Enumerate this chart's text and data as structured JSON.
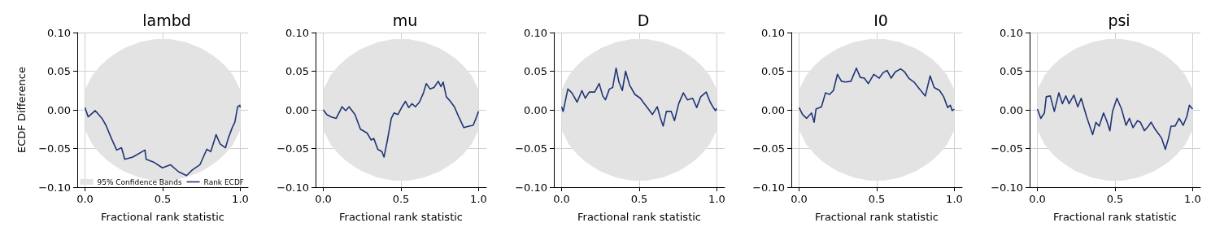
{
  "chart_data": [
    {
      "type": "line",
      "title": "lambd",
      "xlabel": "Fractional rank statistic",
      "ylabel": "ECDF Difference",
      "xlim": [
        -0.05,
        1.05
      ],
      "ylim": [
        -0.1,
        0.1
      ],
      "xticks": [
        {
          "value": 0,
          "label": "0.0"
        },
        {
          "value": 0.5,
          "label": "0.5"
        },
        {
          "value": 1,
          "label": "1.0"
        }
      ],
      "yticks": [
        {
          "value": -0.1,
          "label": "−0.10"
        },
        {
          "value": -0.05,
          "label": "−0.05"
        },
        {
          "value": 0,
          "label": "0.00"
        },
        {
          "value": 0.05,
          "label": "0.05"
        },
        {
          "value": 0.1,
          "label": "0.10"
        }
      ],
      "grid": true,
      "legend": "bottom right",
      "series": [
        {
          "type": "area",
          "name": "95% Confidence Bands",
          "color": "#e3e3e3",
          "x": [
            0,
            0.05,
            0.1,
            0.15,
            0.2,
            0.25,
            0.3,
            0.35,
            0.4,
            0.45,
            0.5,
            0.55,
            0.6,
            0.65,
            0.7,
            0.75,
            0.8,
            0.85,
            0.9,
            0.95,
            1
          ],
          "values": [
            0.025,
            0.045,
            0.057,
            0.066,
            0.073,
            0.079,
            0.083,
            0.087,
            0.089,
            0.091,
            0.091,
            0.091,
            0.089,
            0.087,
            0.083,
            0.079,
            0.073,
            0.066,
            0.057,
            0.045,
            0.025
          ]
        },
        {
          "type": "area",
          "color": "#e3e3e3",
          "x": [
            0,
            0.05,
            0.1,
            0.15,
            0.2,
            0.25,
            0.3,
            0.35,
            0.4,
            0.45,
            0.5,
            0.55,
            0.6,
            0.65,
            0.7,
            0.75,
            0.8,
            0.85,
            0.9,
            0.95,
            1
          ],
          "values": [
            -0.025,
            -0.045,
            -0.057,
            -0.066,
            -0.073,
            -0.079,
            -0.083,
            -0.087,
            -0.089,
            -0.091,
            -0.091,
            -0.091,
            -0.089,
            -0.087,
            -0.083,
            -0.079,
            -0.073,
            -0.066,
            -0.057,
            -0.045,
            -0.025
          ]
        },
        {
          "type": "line",
          "name": "Rank ECDF",
          "color": "#1f3577",
          "x": [
            0,
            0.02,
            0.066,
            0.109,
            0.135,
            0.17,
            0.204,
            0.235,
            0.256,
            0.308,
            0.386,
            0.394,
            0.446,
            0.498,
            0.55,
            0.602,
            0.654,
            0.689,
            0.74,
            0.784,
            0.81,
            0.844,
            0.87,
            0.905,
            0.922,
            0.948,
            0.965,
            0.983,
            0.997,
            1
          ],
          "values": [
            0.003,
            -0.009,
            -0.001,
            -0.011,
            -0.02,
            -0.037,
            -0.052,
            -0.049,
            -0.064,
            -0.061,
            -0.052,
            -0.064,
            -0.068,
            -0.075,
            -0.071,
            -0.08,
            -0.085,
            -0.078,
            -0.071,
            -0.051,
            -0.054,
            -0.032,
            -0.044,
            -0.049,
            -0.037,
            -0.023,
            -0.016,
            0.004,
            0.006,
            0.003
          ]
        }
      ]
    },
    {
      "type": "line",
      "title": "mu",
      "xlabel": "Fractional rank statistic",
      "xlim": [
        -0.05,
        1.05
      ],
      "ylim": [
        -0.1,
        0.1
      ],
      "xticks": [
        {
          "value": 0,
          "label": "0.0"
        },
        {
          "value": 0.5,
          "label": "0.5"
        },
        {
          "value": 1,
          "label": "1.0"
        }
      ],
      "yticks": [
        {
          "value": -0.1,
          "label": "−0.10"
        },
        {
          "value": -0.05,
          "label": "−0.05"
        },
        {
          "value": 0,
          "label": "0.00"
        },
        {
          "value": 0.05,
          "label": "0.05"
        },
        {
          "value": 0.1,
          "label": "0.10"
        }
      ],
      "grid": true,
      "series": [
        {
          "type": "area",
          "color": "#e3e3e3",
          "x": [
            0,
            0.05,
            0.1,
            0.15,
            0.2,
            0.25,
            0.3,
            0.35,
            0.4,
            0.45,
            0.5,
            0.55,
            0.6,
            0.65,
            0.7,
            0.75,
            0.8,
            0.85,
            0.9,
            0.95,
            1
          ],
          "values": [
            0.025,
            0.045,
            0.057,
            0.066,
            0.073,
            0.079,
            0.083,
            0.087,
            0.089,
            0.091,
            0.091,
            0.091,
            0.089,
            0.087,
            0.083,
            0.079,
            0.073,
            0.066,
            0.057,
            0.045,
            0.025
          ]
        },
        {
          "type": "area",
          "color": "#e3e3e3",
          "x": [
            0,
            0.05,
            0.1,
            0.15,
            0.2,
            0.25,
            0.3,
            0.35,
            0.4,
            0.45,
            0.5,
            0.55,
            0.6,
            0.65,
            0.7,
            0.75,
            0.8,
            0.85,
            0.9,
            0.95,
            1
          ],
          "values": [
            -0.025,
            -0.045,
            -0.057,
            -0.066,
            -0.073,
            -0.079,
            -0.083,
            -0.087,
            -0.089,
            -0.091,
            -0.091,
            -0.091,
            -0.089,
            -0.087,
            -0.083,
            -0.079,
            -0.073,
            -0.066,
            -0.057,
            -0.045,
            -0.025
          ]
        },
        {
          "type": "line",
          "color": "#1f3577",
          "x": [
            0,
            0.022,
            0.048,
            0.083,
            0.121,
            0.144,
            0.166,
            0.204,
            0.239,
            0.282,
            0.308,
            0.325,
            0.351,
            0.377,
            0.391,
            0.412,
            0.438,
            0.455,
            0.481,
            0.507,
            0.529,
            0.55,
            0.571,
            0.593,
            0.619,
            0.645,
            0.663,
            0.688,
            0.713,
            0.74,
            0.758,
            0.772,
            0.792,
            0.818,
            0.844,
            0.87,
            0.905,
            0.939,
            0.965,
            0.983,
            1
          ],
          "values": [
            0,
            -0.006,
            -0.009,
            -0.011,
            0.004,
            -0.001,
            0.004,
            -0.006,
            -0.025,
            -0.03,
            -0.039,
            -0.037,
            -0.051,
            -0.054,
            -0.061,
            -0.04,
            -0.011,
            -0.004,
            -0.006,
            0.004,
            0.011,
            0.003,
            0.008,
            0.004,
            0.01,
            0.022,
            0.034,
            0.027,
            0.029,
            0.037,
            0.03,
            0.036,
            0.017,
            0.011,
            0.004,
            -0.008,
            -0.023,
            -0.021,
            -0.02,
            -0.011,
            -0.002
          ]
        }
      ]
    },
    {
      "type": "line",
      "title": "D",
      "xlabel": "Fractional rank statistic",
      "xlim": [
        -0.05,
        1.05
      ],
      "ylim": [
        -0.1,
        0.1
      ],
      "xticks": [
        {
          "value": 0,
          "label": "0.0"
        },
        {
          "value": 0.5,
          "label": "0.5"
        },
        {
          "value": 1,
          "label": "1.0"
        }
      ],
      "yticks": [
        {
          "value": -0.1,
          "label": "−0.10"
        },
        {
          "value": -0.05,
          "label": "−0.05"
        },
        {
          "value": 0,
          "label": "0.00"
        },
        {
          "value": 0.05,
          "label": "0.05"
        },
        {
          "value": 0.1,
          "label": "0.10"
        }
      ],
      "grid": true,
      "series": [
        {
          "type": "area",
          "color": "#e3e3e3",
          "x": [
            0,
            0.05,
            0.1,
            0.15,
            0.2,
            0.25,
            0.3,
            0.35,
            0.4,
            0.45,
            0.5,
            0.55,
            0.6,
            0.65,
            0.7,
            0.75,
            0.8,
            0.85,
            0.9,
            0.95,
            1
          ],
          "values": [
            0.025,
            0.045,
            0.057,
            0.066,
            0.073,
            0.079,
            0.083,
            0.087,
            0.089,
            0.091,
            0.091,
            0.091,
            0.089,
            0.087,
            0.083,
            0.079,
            0.073,
            0.066,
            0.057,
            0.045,
            0.025
          ]
        },
        {
          "type": "area",
          "color": "#e3e3e3",
          "x": [
            0,
            0.05,
            0.1,
            0.15,
            0.2,
            0.25,
            0.3,
            0.35,
            0.4,
            0.45,
            0.5,
            0.55,
            0.6,
            0.65,
            0.7,
            0.75,
            0.8,
            0.85,
            0.9,
            0.95,
            1
          ],
          "values": [
            -0.025,
            -0.045,
            -0.057,
            -0.066,
            -0.073,
            -0.079,
            -0.083,
            -0.087,
            -0.089,
            -0.091,
            -0.091,
            -0.091,
            -0.089,
            -0.087,
            -0.083,
            -0.079,
            -0.073,
            -0.066,
            -0.057,
            -0.045,
            -0.025
          ]
        },
        {
          "type": "line",
          "color": "#1f3577",
          "x": [
            0,
            0.01,
            0.04,
            0.066,
            0.1,
            0.131,
            0.152,
            0.178,
            0.213,
            0.242,
            0.265,
            0.282,
            0.308,
            0.329,
            0.351,
            0.369,
            0.391,
            0.412,
            0.438,
            0.472,
            0.507,
            0.533,
            0.559,
            0.585,
            0.616,
            0.637,
            0.654,
            0.675,
            0.706,
            0.727,
            0.754,
            0.784,
            0.81,
            0.844,
            0.87,
            0.896,
            0.931,
            0.957,
            0.974,
            0.991,
            1
          ],
          "values": [
            0.004,
            -0.002,
            0.027,
            0.022,
            0.01,
            0.025,
            0.015,
            0.023,
            0.023,
            0.034,
            0.018,
            0.013,
            0.027,
            0.029,
            0.054,
            0.036,
            0.025,
            0.05,
            0.032,
            0.02,
            0.015,
            0.008,
            0.001,
            -0.006,
            0.004,
            -0.011,
            -0.021,
            -0.002,
            -0.002,
            -0.014,
            0.008,
            0.022,
            0.013,
            0.015,
            0.003,
            0.017,
            0.023,
            0.01,
            0.004,
            -0.001,
            0.002
          ]
        }
      ]
    },
    {
      "type": "line",
      "title": "I0",
      "xlabel": "Fractional rank statistic",
      "xlim": [
        -0.05,
        1.05
      ],
      "ylim": [
        -0.1,
        0.1
      ],
      "xticks": [
        {
          "value": 0,
          "label": "0.0"
        },
        {
          "value": 0.5,
          "label": "0.5"
        },
        {
          "value": 1,
          "label": "1.0"
        }
      ],
      "yticks": [
        {
          "value": -0.1,
          "label": "−0.10"
        },
        {
          "value": -0.05,
          "label": "−0.05"
        },
        {
          "value": 0,
          "label": "0.00"
        },
        {
          "value": 0.05,
          "label": "0.05"
        },
        {
          "value": 0.1,
          "label": "0.10"
        }
      ],
      "grid": true,
      "series": [
        {
          "type": "area",
          "color": "#e3e3e3",
          "x": [
            0,
            0.05,
            0.1,
            0.15,
            0.2,
            0.25,
            0.3,
            0.35,
            0.4,
            0.45,
            0.5,
            0.55,
            0.6,
            0.65,
            0.7,
            0.75,
            0.8,
            0.85,
            0.9,
            0.95,
            1
          ],
          "values": [
            0.025,
            0.045,
            0.057,
            0.066,
            0.073,
            0.079,
            0.083,
            0.087,
            0.089,
            0.091,
            0.091,
            0.091,
            0.089,
            0.087,
            0.083,
            0.079,
            0.073,
            0.066,
            0.057,
            0.045,
            0.025
          ]
        },
        {
          "type": "area",
          "color": "#e3e3e3",
          "x": [
            0,
            0.05,
            0.1,
            0.15,
            0.2,
            0.25,
            0.3,
            0.35,
            0.4,
            0.45,
            0.5,
            0.55,
            0.6,
            0.65,
            0.7,
            0.75,
            0.8,
            0.85,
            0.9,
            0.95,
            1
          ],
          "values": [
            -0.025,
            -0.045,
            -0.057,
            -0.066,
            -0.073,
            -0.079,
            -0.083,
            -0.087,
            -0.089,
            -0.091,
            -0.091,
            -0.091,
            -0.089,
            -0.087,
            -0.083,
            -0.079,
            -0.073,
            -0.066,
            -0.057,
            -0.045,
            -0.025
          ]
        },
        {
          "type": "line",
          "color": "#1f3577",
          "x": [
            0,
            0.022,
            0.048,
            0.08,
            0.097,
            0.109,
            0.144,
            0.17,
            0.196,
            0.221,
            0.247,
            0.273,
            0.299,
            0.334,
            0.369,
            0.394,
            0.42,
            0.446,
            0.481,
            0.516,
            0.541,
            0.567,
            0.593,
            0.619,
            0.654,
            0.68,
            0.706,
            0.74,
            0.775,
            0.813,
            0.844,
            0.87,
            0.905,
            0.931,
            0.957,
            0.974,
            0.986,
            1
          ],
          "values": [
            0.003,
            -0.006,
            -0.011,
            -0.004,
            -0.016,
            0.001,
            0.004,
            0.022,
            0.02,
            0.025,
            0.046,
            0.037,
            0.036,
            0.037,
            0.054,
            0.042,
            0.041,
            0.034,
            0.046,
            0.041,
            0.048,
            0.051,
            0.041,
            0.049,
            0.053,
            0.049,
            0.041,
            0.036,
            0.027,
            0.018,
            0.044,
            0.029,
            0.025,
            0.017,
            0.003,
            0.006,
            -0.001,
            0.001
          ]
        }
      ]
    },
    {
      "type": "line",
      "title": "psi",
      "xlabel": "Fractional rank statistic",
      "xlim": [
        -0.05,
        1.05
      ],
      "ylim": [
        -0.1,
        0.1
      ],
      "xticks": [
        {
          "value": 0,
          "label": "0.0"
        },
        {
          "value": 0.5,
          "label": "0.5"
        },
        {
          "value": 1,
          "label": "1.0"
        }
      ],
      "yticks": [
        {
          "value": -0.1,
          "label": "−0.10"
        },
        {
          "value": -0.05,
          "label": "−0.05"
        },
        {
          "value": 0,
          "label": "0.00"
        },
        {
          "value": 0.05,
          "label": "0.05"
        },
        {
          "value": 0.1,
          "label": "0.10"
        }
      ],
      "grid": true,
      "series": [
        {
          "type": "area",
          "color": "#e3e3e3",
          "x": [
            0,
            0.05,
            0.1,
            0.15,
            0.2,
            0.25,
            0.3,
            0.35,
            0.4,
            0.45,
            0.5,
            0.55,
            0.6,
            0.65,
            0.7,
            0.75,
            0.8,
            0.85,
            0.9,
            0.95,
            1
          ],
          "values": [
            0.025,
            0.045,
            0.057,
            0.066,
            0.073,
            0.079,
            0.083,
            0.087,
            0.089,
            0.091,
            0.091,
            0.091,
            0.089,
            0.087,
            0.083,
            0.079,
            0.073,
            0.066,
            0.057,
            0.045,
            0.025
          ]
        },
        {
          "type": "area",
          "color": "#e3e3e3",
          "x": [
            0,
            0.05,
            0.1,
            0.15,
            0.2,
            0.25,
            0.3,
            0.35,
            0.4,
            0.45,
            0.5,
            0.55,
            0.6,
            0.65,
            0.7,
            0.75,
            0.8,
            0.85,
            0.9,
            0.95,
            1
          ],
          "values": [
            -0.025,
            -0.045,
            -0.057,
            -0.066,
            -0.073,
            -0.079,
            -0.083,
            -0.087,
            -0.089,
            -0.091,
            -0.091,
            -0.091,
            -0.089,
            -0.087,
            -0.083,
            -0.079,
            -0.073,
            -0.066,
            -0.057,
            -0.045,
            -0.025
          ]
        },
        {
          "type": "line",
          "color": "#1f3577",
          "x": [
            0,
            0.022,
            0.045,
            0.057,
            0.083,
            0.109,
            0.138,
            0.161,
            0.183,
            0.204,
            0.235,
            0.26,
            0.282,
            0.317,
            0.356,
            0.377,
            0.398,
            0.426,
            0.446,
            0.467,
            0.484,
            0.512,
            0.542,
            0.571,
            0.593,
            0.616,
            0.645,
            0.663,
            0.689,
            0.715,
            0.732,
            0.758,
            0.784,
            0.801,
            0.824,
            0.844,
            0.861,
            0.887,
            0.913,
            0.939,
            0.962,
            0.979,
            1
          ],
          "values": [
            0.001,
            -0.011,
            -0.004,
            0.017,
            0.018,
            -0.002,
            0.022,
            0.008,
            0.018,
            0.008,
            0.019,
            0.004,
            0.015,
            -0.009,
            -0.032,
            -0.016,
            -0.021,
            -0.004,
            -0.014,
            -0.027,
            -0.002,
            0.015,
            0.001,
            -0.02,
            -0.011,
            -0.023,
            -0.014,
            -0.016,
            -0.027,
            -0.021,
            -0.016,
            -0.025,
            -0.032,
            -0.037,
            -0.051,
            -0.037,
            -0.021,
            -0.021,
            -0.011,
            -0.02,
            -0.009,
            0.006,
            0.001
          ]
        }
      ]
    }
  ]
}
